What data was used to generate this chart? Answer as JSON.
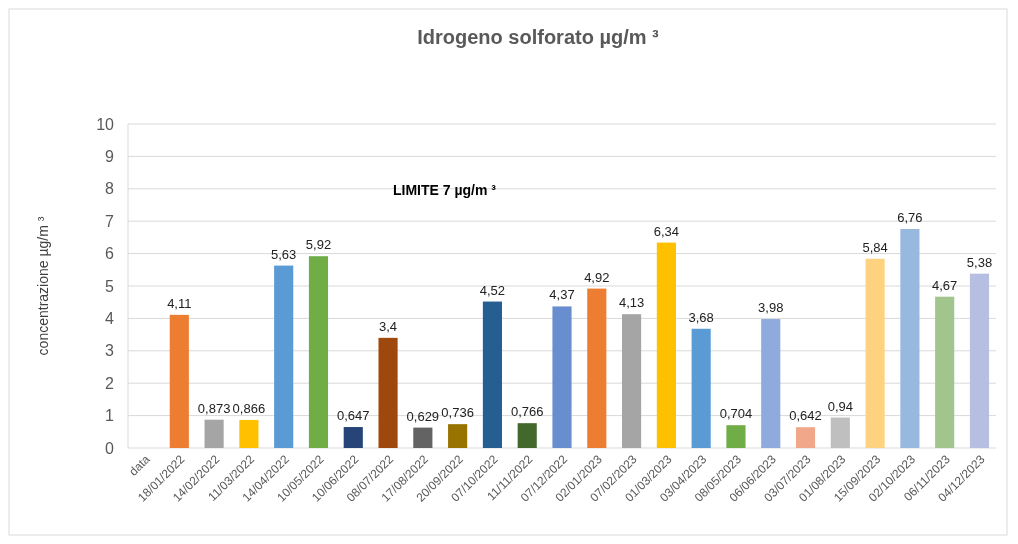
{
  "chart_data": {
    "type": "bar",
    "title": "Idrogeno solforato µg/m ³",
    "ylabel": "concentrazione µg/m ³",
    "categories": [
      "data",
      "18/01/2022",
      "14/02/2022",
      "11/03/2022",
      "14/04/2022",
      "10/05/2022",
      "10/06/2022",
      "08/07/2022",
      "17/08/2022",
      "20/09/2022",
      "07/10/2022",
      "11/11/2022",
      "07/12/2022",
      "02/01/2023",
      "07/02/2023",
      "01/03/2023",
      "03/04/2023",
      "08/05/2023",
      "06/06/2023",
      "03/07/2023",
      "01/08/2023",
      "15/09/2023",
      "02/10/2023",
      "06/11/2023",
      "04/12/2023"
    ],
    "values": [
      null,
      4.11,
      0.873,
      0.866,
      5.63,
      5.92,
      0.647,
      3.4,
      0.629,
      0.736,
      4.52,
      0.766,
      4.37,
      4.92,
      4.13,
      6.34,
      3.68,
      0.704,
      3.98,
      0.642,
      0.94,
      5.84,
      6.76,
      4.67,
      5.38
    ],
    "value_labels": [
      null,
      "4,11",
      "0,873",
      "0,866",
      "5,63",
      "5,92",
      "0,647",
      "3,4",
      "0,629",
      "0,736",
      "4,52",
      "0,766",
      "4,37",
      "4,92",
      "4,13",
      "6,34",
      "3,68",
      "0,704",
      "3,98",
      "0,642",
      "0,94",
      "5,84",
      "6,76",
      "4,67",
      "5,38"
    ],
    "colors": [
      null,
      "#ed7d31",
      "#a5a5a5",
      "#ffc000",
      "#5b9bd5",
      "#70ad47",
      "#264478",
      "#9e480e",
      "#636363",
      "#997300",
      "#255e91",
      "#43682b",
      "#698ed0",
      "#ed7d31",
      "#a5a5a5",
      "#ffc000",
      "#5b9bd5",
      "#70ad47",
      "#8faadc",
      "#f1a78a",
      "#bfbfbf",
      "#ffd27f",
      "#97b9e0",
      "#a2c58e",
      "#b6bfe2"
    ],
    "ylim": [
      0,
      10
    ],
    "yticks": [
      0,
      1,
      2,
      3,
      4,
      5,
      6,
      7,
      8,
      9,
      10
    ],
    "grid": "y",
    "annotations": [
      "LIMITE 7 µg/m ³"
    ]
  }
}
